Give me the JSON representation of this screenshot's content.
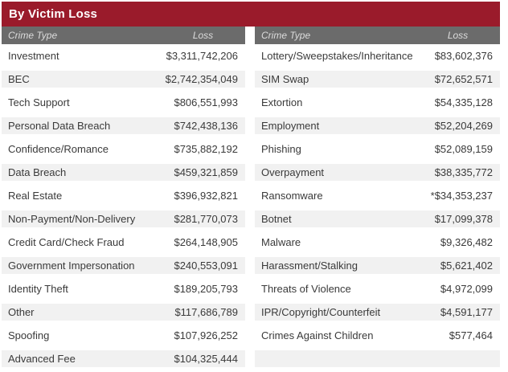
{
  "title": "By Victim Loss",
  "column_headers": {
    "crime_type": "Crime Type",
    "loss": "Loss"
  },
  "colors": {
    "title_bar_red": "#9a1b2b",
    "column_header_gray": "#6b6b6b",
    "stripe_gray": "#f1f1f1",
    "header_text": "#dcdcdc",
    "body_text": "#3a3a3a"
  },
  "tables": [
    {
      "rows": [
        {
          "crime_type": "Investment",
          "loss": "$3,311,742,206"
        },
        {
          "crime_type": "BEC",
          "loss": "$2,742,354,049"
        },
        {
          "crime_type": "Tech Support",
          "loss": "$806,551,993"
        },
        {
          "crime_type": "Personal Data Breach",
          "loss": "$742,438,136"
        },
        {
          "crime_type": "Confidence/Romance",
          "loss": "$735,882,192"
        },
        {
          "crime_type": "Data Breach",
          "loss": "$459,321,859"
        },
        {
          "crime_type": "Real Estate",
          "loss": "$396,932,821"
        },
        {
          "crime_type": "Non-Payment/Non-Delivery",
          "loss": "$281,770,073"
        },
        {
          "crime_type": "Credit Card/Check Fraud",
          "loss": "$264,148,905"
        },
        {
          "crime_type": "Government Impersonation",
          "loss": "$240,553,091"
        },
        {
          "crime_type": "Identity Theft",
          "loss": "$189,205,793"
        },
        {
          "crime_type": "Other",
          "loss": "$117,686,789"
        },
        {
          "crime_type": "Spoofing",
          "loss": "$107,926,252"
        },
        {
          "crime_type": "Advanced Fee",
          "loss": "$104,325,444"
        }
      ]
    },
    {
      "rows": [
        {
          "crime_type": "Lottery/Sweepstakes/Inheritance",
          "loss": "$83,602,376"
        },
        {
          "crime_type": "SIM Swap",
          "loss": "$72,652,571"
        },
        {
          "crime_type": "Extortion",
          "loss": "$54,335,128"
        },
        {
          "crime_type": "Employment",
          "loss": "$52,204,269"
        },
        {
          "crime_type": "Phishing",
          "loss": "$52,089,159"
        },
        {
          "crime_type": "Overpayment",
          "loss": "$38,335,772"
        },
        {
          "crime_type": "Ransomware",
          "loss": "*$34,353,237"
        },
        {
          "crime_type": "Botnet",
          "loss": "$17,099,378"
        },
        {
          "crime_type": "Malware",
          "loss": "$9,326,482"
        },
        {
          "crime_type": "Harassment/Stalking",
          "loss": "$5,621,402"
        },
        {
          "crime_type": "Threats of Violence",
          "loss": "$4,972,099"
        },
        {
          "crime_type": "IPR/Copyright/Counterfeit",
          "loss": "$4,591,177"
        },
        {
          "crime_type": "Crimes Against Children",
          "loss": "$577,464"
        },
        {
          "crime_type": "",
          "loss": ""
        }
      ]
    }
  ]
}
